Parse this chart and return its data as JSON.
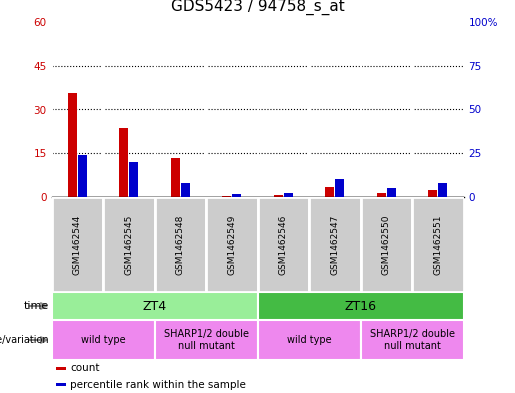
{
  "title": "GDS5423 / 94758_s_at",
  "samples": [
    "GSM1462544",
    "GSM1462545",
    "GSM1462548",
    "GSM1462549",
    "GSM1462546",
    "GSM1462547",
    "GSM1462550",
    "GSM1462551"
  ],
  "count_values": [
    35.5,
    23.5,
    13.5,
    0.4,
    0.8,
    3.5,
    1.5,
    2.5
  ],
  "percentile_values": [
    24,
    20,
    8,
    1.5,
    2,
    10,
    5,
    8
  ],
  "ylim_left": [
    0,
    60
  ],
  "ylim_right": [
    0,
    100
  ],
  "yticks_left": [
    0,
    15,
    30,
    45,
    60
  ],
  "yticks_right": [
    0,
    25,
    50,
    75,
    100
  ],
  "ytick_labels_left": [
    "0",
    "15",
    "30",
    "45",
    "60"
  ],
  "ytick_labels_right": [
    "0",
    "25",
    "50",
    "75",
    "100%"
  ],
  "bar_color_count": "#cc0000",
  "bar_color_percentile": "#0000cc",
  "bar_width": 0.18,
  "time_groups": [
    {
      "label": "ZT4",
      "start": 0,
      "end": 4,
      "color": "#99ee99"
    },
    {
      "label": "ZT16",
      "start": 4,
      "end": 8,
      "color": "#44bb44"
    }
  ],
  "genotype_groups": [
    {
      "label": "wild type",
      "start": 0,
      "end": 2,
      "color": "#ee88ee"
    },
    {
      "label": "SHARP1/2 double\nnull mutant",
      "start": 2,
      "end": 4,
      "color": "#ee88ee"
    },
    {
      "label": "wild type",
      "start": 4,
      "end": 6,
      "color": "#ee88ee"
    },
    {
      "label": "SHARP1/2 double\nnull mutant",
      "start": 6,
      "end": 8,
      "color": "#ee88ee"
    }
  ],
  "legend_items": [
    {
      "label": "count",
      "color": "#cc0000"
    },
    {
      "label": "percentile rank within the sample",
      "color": "#0000cc"
    }
  ],
  "title_fontsize": 11,
  "tick_fontsize": 7.5,
  "col_bg_color": "#cccccc",
  "col_border_color": "#ffffff",
  "plot_bg": "#ffffff"
}
